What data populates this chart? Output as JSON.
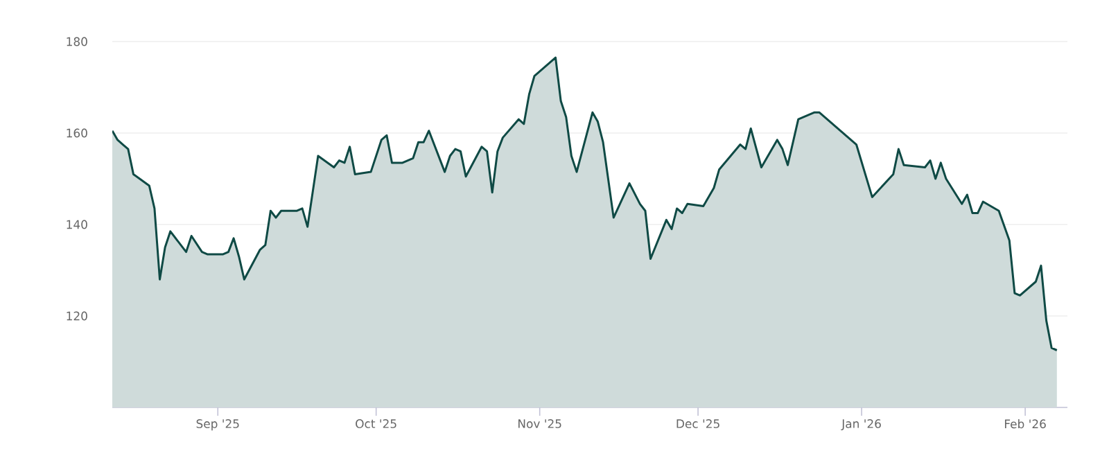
{
  "chart_data": {
    "type": "area",
    "color": "#0f4a45",
    "grid": "y",
    "xlim": [
      "2025-08-12",
      "2026-02-09"
    ],
    "ylim": [
      100,
      180
    ],
    "yticks": [
      120,
      140,
      160,
      180
    ],
    "xticks": [
      {
        "value": "2025-09-01",
        "label": "Sep '25"
      },
      {
        "value": "2025-10-01",
        "label": "Oct '25"
      },
      {
        "value": "2025-11-01",
        "label": "Nov '25"
      },
      {
        "value": "2025-12-01",
        "label": "Dec '25"
      },
      {
        "value": "2026-01-01",
        "label": "Jan '26"
      },
      {
        "value": "2026-02-01",
        "label": "Feb '26"
      }
    ],
    "x": [
      "2025-08-12",
      "2025-08-13",
      "2025-08-14",
      "2025-08-15",
      "2025-08-16",
      "2025-08-19",
      "2025-08-20",
      "2025-08-21",
      "2025-08-22",
      "2025-08-23",
      "2025-08-26",
      "2025-08-27",
      "2025-08-29",
      "2025-08-30",
      "2025-09-02",
      "2025-09-03",
      "2025-09-04",
      "2025-09-05",
      "2025-09-06",
      "2025-09-09",
      "2025-09-10",
      "2025-09-11",
      "2025-09-12",
      "2025-09-13",
      "2025-09-16",
      "2025-09-17",
      "2025-09-18",
      "2025-09-20",
      "2025-09-23",
      "2025-09-24",
      "2025-09-25",
      "2025-09-26",
      "2025-09-27",
      "2025-09-30",
      "2025-10-02",
      "2025-10-03",
      "2025-10-04",
      "2025-10-06",
      "2025-10-08",
      "2025-10-09",
      "2025-10-10",
      "2025-10-11",
      "2025-10-14",
      "2025-10-15",
      "2025-10-16",
      "2025-10-17",
      "2025-10-18",
      "2025-10-21",
      "2025-10-22",
      "2025-10-23",
      "2025-10-24",
      "2025-10-25",
      "2025-10-28",
      "2025-10-29",
      "2025-10-30",
      "2025-10-31",
      "2025-11-04",
      "2025-11-05",
      "2025-11-06",
      "2025-11-07",
      "2025-11-08",
      "2025-11-11",
      "2025-11-12",
      "2025-11-13",
      "2025-11-15",
      "2025-11-18",
      "2025-11-20",
      "2025-11-21",
      "2025-11-22",
      "2025-11-25",
      "2025-11-26",
      "2025-11-27",
      "2025-11-28",
      "2025-11-29",
      "2025-12-02",
      "2025-12-04",
      "2025-12-05",
      "2025-12-09",
      "2025-12-10",
      "2025-12-11",
      "2025-12-13",
      "2025-12-16",
      "2025-12-17",
      "2025-12-18",
      "2025-12-20",
      "2025-12-23",
      "2025-12-24",
      "2025-12-31",
      "2026-01-03",
      "2026-01-07",
      "2026-01-08",
      "2026-01-09",
      "2026-01-13",
      "2026-01-14",
      "2026-01-15",
      "2026-01-16",
      "2026-01-17",
      "2026-01-20",
      "2026-01-21",
      "2026-01-22",
      "2026-01-23",
      "2026-01-24",
      "2026-01-27",
      "2026-01-29",
      "2026-01-30",
      "2026-01-31",
      "2026-02-03",
      "2026-02-04",
      "2026-02-05",
      "2026-02-06",
      "2026-02-07"
    ],
    "values": [
      160.5,
      158.5,
      157.5,
      156.5,
      151,
      148.5,
      143.5,
      128,
      135,
      138.5,
      134,
      137.5,
      134,
      133.5,
      133.5,
      134,
      137,
      133,
      128,
      134.5,
      135.5,
      143,
      141.5,
      143,
      143,
      143.5,
      139.5,
      155,
      152.5,
      154,
      153.5,
      157,
      151,
      151.5,
      158.5,
      159.5,
      153.5,
      153.5,
      154.5,
      158,
      158,
      160.5,
      151.5,
      155,
      156.5,
      156,
      150.5,
      157,
      156,
      147,
      156,
      159,
      163,
      162,
      168.5,
      172.5,
      176.5,
      167,
      163.5,
      155,
      151.5,
      164.5,
      162.5,
      158,
      141.5,
      149,
      144.5,
      143,
      132.5,
      141,
      139,
      143.5,
      142.5,
      144.5,
      144,
      148,
      152,
      157.5,
      156.5,
      161,
      152.5,
      158.5,
      156.5,
      153,
      163,
      164.5,
      164.5,
      157.5,
      146,
      151,
      156.5,
      153,
      152.5,
      154,
      150,
      153.5,
      150,
      144.5,
      146.5,
      142.5,
      142.5,
      145,
      143,
      136.5,
      125,
      124.5,
      127.5,
      131,
      119,
      113,
      112.5
    ]
  }
}
